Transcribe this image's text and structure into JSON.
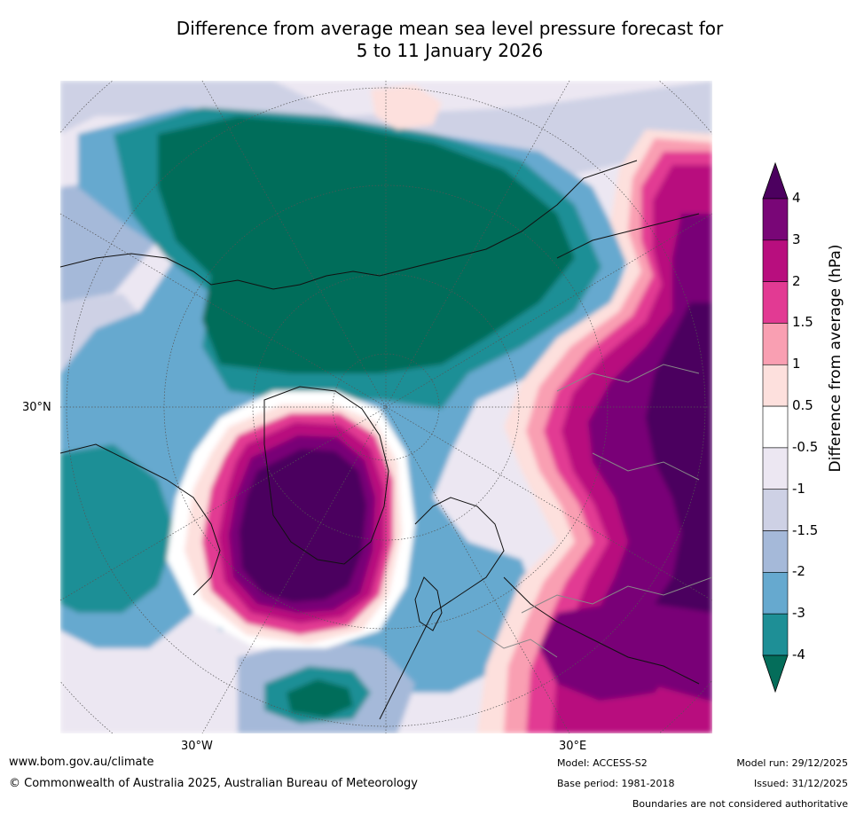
{
  "title": {
    "line1": "Difference from average mean sea level pressure forecast for",
    "line2": "5 to 11 January 2026"
  },
  "map": {
    "lat_label": "30°N",
    "lon_labels": [
      "30°W",
      "30°E"
    ],
    "colors": {
      "neg4": "#046d5a",
      "neg3": "#1e8f96",
      "neg2": "#66a9cf",
      "neg15": "#a5b9d9",
      "neg1": "#ced1e5",
      "neg05": "#ece7f2",
      "zero": "#ffffff",
      "pos05": "#fde0dd",
      "pos1": "#f99fb2",
      "pos15": "#e23a93",
      "pos2": "#b80e7e",
      "pos3": "#790677",
      "pos4": "#4c005f"
    }
  },
  "colorbar": {
    "title": "Difference from average (hPa)",
    "ticks": [
      "4",
      "3",
      "2",
      "1.5",
      "1",
      "0.5",
      "-0.5",
      "-1",
      "-1.5",
      "-2",
      "-3",
      "-4"
    ]
  },
  "footer": {
    "url": "www.bom.gov.au/climate",
    "copyright": "© Commonwealth of Australia 2025, Australian Bureau of Meteorology",
    "model": "Model: ACCESS-S2",
    "base_period": "Base period: 1981-2018",
    "model_run": "Model run: 29/12/2025",
    "issued": "Issued: 31/12/2025",
    "boundaries": "Boundaries are not considered authoritative"
  }
}
